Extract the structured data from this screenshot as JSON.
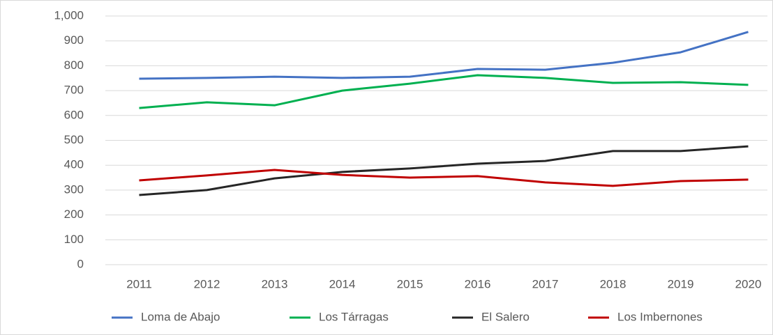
{
  "chart_data": {
    "type": "line",
    "categories": [
      "2011",
      "2012",
      "2013",
      "2014",
      "2015",
      "2016",
      "2017",
      "2018",
      "2019",
      "2020"
    ],
    "series": [
      {
        "name": "Loma de Abajo",
        "color": "#4472c4",
        "values": [
          748,
          751,
          756,
          751,
          756,
          787,
          784,
          812,
          854,
          936
        ]
      },
      {
        "name": "Los Tárragas",
        "color": "#00b050",
        "values": [
          630,
          653,
          641,
          700,
          728,
          762,
          751,
          731,
          734,
          723
        ]
      },
      {
        "name": "El Salero",
        "color": "#262626",
        "values": [
          280,
          300,
          347,
          373,
          387,
          406,
          417,
          457,
          457,
          476
        ]
      },
      {
        "name": "Los Imbernones",
        "color": "#c00000",
        "values": [
          339,
          359,
          381,
          361,
          350,
          356,
          331,
          317,
          336,
          342
        ]
      }
    ],
    "ylim": [
      0,
      1000
    ],
    "yticks": [
      0,
      100,
      200,
      300,
      400,
      500,
      600,
      700,
      800,
      900,
      {
        "value": 1000,
        "label": "1,000"
      }
    ],
    "grid": true,
    "legend": "bottom"
  }
}
